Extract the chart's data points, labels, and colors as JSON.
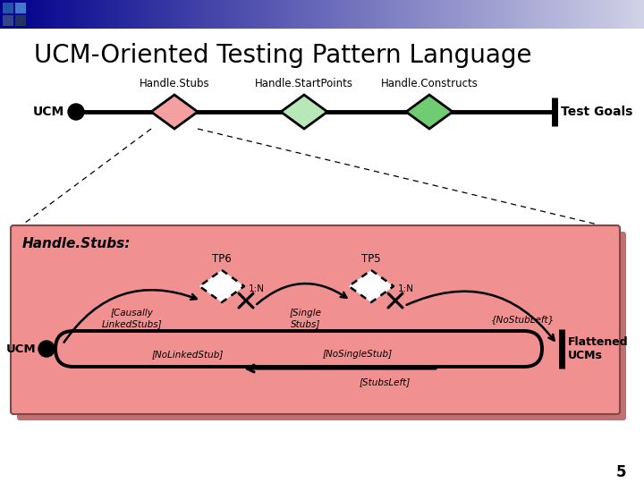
{
  "title": "UCM-Oriented Testing Pattern Language",
  "title_fontsize": 20,
  "slide_bg": "#ffffff",
  "pink_box_bg": "#f09090",
  "pink_box_shadow": "#c07070",
  "diamond1_label": "Handle.Stubs",
  "diamond2_label": "Handle.StartPoints",
  "diamond3_label": "Handle.Constructs",
  "ucm_label": "UCM",
  "test_goals_label": "Test Goals",
  "diamond1_fill": "#f4a0a0",
  "diamond2_fill": "#b8e8b8",
  "diamond3_fill": "#70cc70",
  "handle_stubs_title": "Handle.Stubs:",
  "tp6_label": "TP6",
  "tp5_label": "TP5",
  "causally_label": "[Causally\nLinkedStubs]",
  "single_stubs_label": "[Single\nStubs]",
  "no_linked_stub_label": "[NoLinkedStub]",
  "no_single_stub_label": "[NoSingleStub]",
  "no_stub_left_label": "{NoStubLeft}",
  "stubs_left_label": "[StubsLeft]",
  "flattened_ucms_label": "Flattened\nUCMs",
  "one_n_label": "1:N",
  "page_number": "5",
  "header_color_left": "#00008b",
  "header_color_right": "#e8e8f4"
}
